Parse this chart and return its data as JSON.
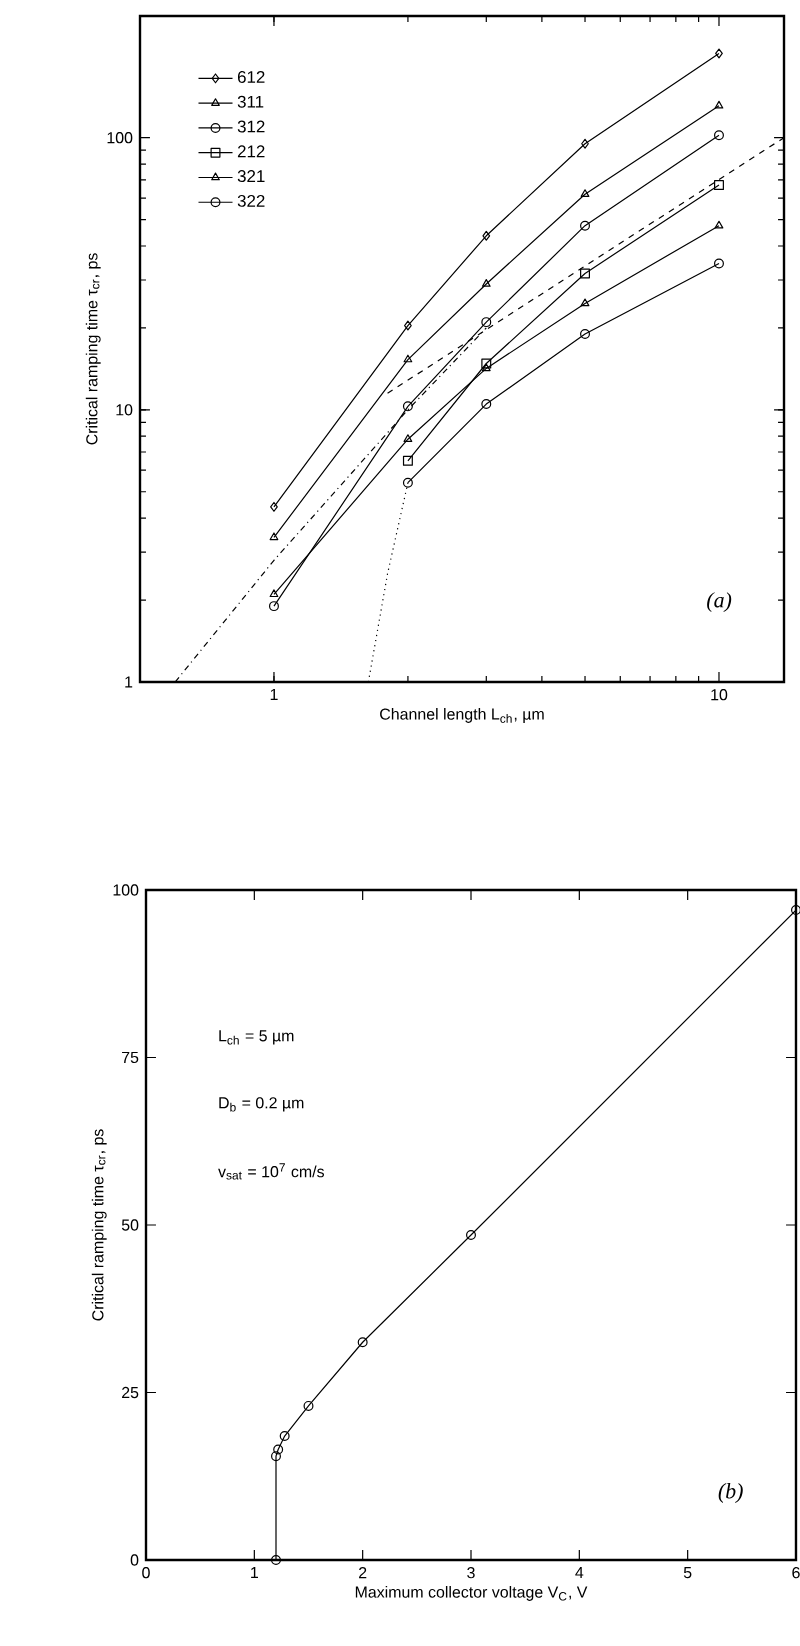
{
  "chart_data": [
    {
      "type": "line",
      "xlabel": "Channel length L$_{ch}$, µm",
      "ylabel": "Critical ramping time τ$_{cr}$, ps",
      "log": "xy",
      "xlim": [
        0.5,
        14
      ],
      "ylim": [
        1,
        280
      ],
      "xticks": [
        1,
        10
      ],
      "yticks": [
        1,
        10,
        100
      ],
      "grid": false,
      "legend": "top left",
      "annotations": [
        "(a)"
      ],
      "series": [
        {
          "name": "612",
          "color": "#000000",
          "marker": "diamond",
          "line_style": "solid",
          "x": [
            1,
            2,
            3,
            5,
            10
          ],
          "values": [
            4.4,
            20.4,
            43.6,
            95,
            204
          ]
        },
        {
          "name": "311",
          "color": "#000000",
          "marker": "triangle",
          "line_style": "solid",
          "x": [
            1,
            2,
            3,
            5,
            10
          ],
          "values": [
            3.4,
            15.3,
            29,
            62,
            131
          ]
        },
        {
          "name": "312",
          "color": "#000000",
          "marker": "circle",
          "line_style": "solid",
          "x": [
            1,
            2,
            3,
            5,
            10
          ],
          "values": [
            1.9,
            10.3,
            21,
            47.5,
            102
          ]
        },
        {
          "name": "212",
          "color": "#000000",
          "marker": "square",
          "line_style": "solid",
          "x": [
            2,
            3,
            5,
            10
          ],
          "values": [
            6.5,
            14.8,
            31.7,
            67
          ]
        },
        {
          "name": "321",
          "color": "#000000",
          "marker": "triangle",
          "line_style": "solid",
          "x": [
            1,
            2,
            3,
            5,
            10
          ],
          "values": [
            2.1,
            7.8,
            14.2,
            24.6,
            47.5
          ]
        },
        {
          "name": "322",
          "color": "#000000",
          "marker": "circle",
          "line_style": "solid",
          "x": [
            2,
            3,
            5,
            10
          ],
          "values": [
            5.4,
            10.5,
            19,
            34.5
          ]
        },
        {
          "color": "#000000",
          "marker": "none",
          "line_style": "dashed",
          "x": [
            1.8,
            14
          ],
          "values": [
            11.5,
            100
          ]
        },
        {
          "color": "#000000",
          "marker": "none",
          "line_style": "dashdot",
          "x": [
            0.6,
            1,
            2,
            3
          ],
          "values": [
            1,
            2.8,
            10,
            20
          ]
        },
        {
          "color": "#000000",
          "marker": "none",
          "line_style": "dotted",
          "x": [
            1.63,
            1.8,
            2
          ],
          "values": [
            1,
            2.5,
            5.4
          ]
        }
      ]
    },
    {
      "type": "line",
      "xlabel": "Maximum collector voltage V$_{C}$, V",
      "ylabel": "Critical ramping time τ$_{cr}$, ps",
      "xlim": [
        0,
        6
      ],
      "ylim": [
        0,
        100
      ],
      "xticks": [
        0,
        1,
        2,
        3,
        4,
        5,
        6
      ],
      "yticks": [
        0,
        25,
        50,
        75,
        100
      ],
      "grid": false,
      "legend": false,
      "annotations": [
        "L$_{ch}$ = 5 µm",
        "D$_{b}$ = 0.2 µm",
        "v$_{sat}$ = 10$^{7}$ cm/s",
        "(b)"
      ],
      "series": [
        {
          "color": "#000000",
          "marker": "circle",
          "line_style": "solid",
          "x": [
            1.2,
            1.2,
            1.22,
            1.28,
            1.5,
            2,
            3,
            6
          ],
          "values": [
            0,
            15.5,
            16.5,
            18.5,
            23,
            32.5,
            48.5,
            97
          ]
        }
      ]
    }
  ]
}
